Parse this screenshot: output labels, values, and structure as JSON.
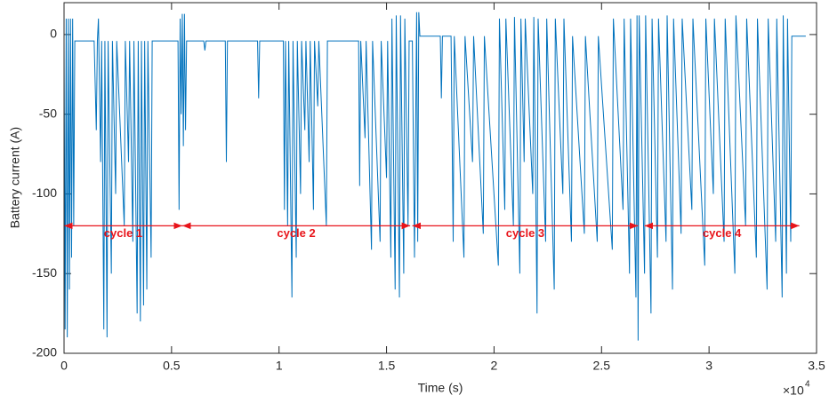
{
  "chart_data": {
    "type": "line",
    "x_label": "Time (s)",
    "y_label": "Battery current (A)",
    "x_multiplier": "×10",
    "x_multiplier_exponent": "4",
    "color": "#0072bd",
    "xlim": [
      0,
      35000
    ],
    "xticks": [
      0,
      {
        "value": 5000,
        "label": "0.5"
      },
      {
        "value": 10000,
        "label": "1"
      },
      {
        "value": 15000,
        "label": "1.5"
      },
      {
        "value": 20000,
        "label": "2"
      },
      {
        "value": 25000,
        "label": "2.5"
      },
      {
        "value": 30000,
        "label": "3"
      },
      {
        "value": 35000,
        "label": "3.5"
      }
    ],
    "ylim": [
      -200,
      20
    ],
    "yticks": [
      -200,
      -150,
      -100,
      -50,
      0
    ],
    "annotations": [
      {
        "text": "cycle 1",
        "x": [
          0,
          5500
        ],
        "y": -120
      },
      {
        "text": "cycle 2",
        "x": [
          5500,
          16100
        ],
        "y": -120
      },
      {
        "text": "cycle 3",
        "x": [
          16200,
          26700
        ],
        "y": -120
      },
      {
        "text": "cycle 4",
        "x": [
          27000,
          34200
        ],
        "y": -120
      }
    ],
    "x": [
      0,
      50,
      100,
      150,
      200,
      250,
      300,
      350,
      400,
      450,
      500,
      1400,
      1500,
      1550,
      1600,
      1700,
      1750,
      1850,
      1900,
      2000,
      2050,
      2200,
      2250,
      2400,
      2450,
      2800,
      2850,
      3000,
      3050,
      3200,
      3250,
      3400,
      3450,
      3550,
      3600,
      3700,
      3750,
      3850,
      3900,
      4050,
      4100,
      5300,
      5350,
      5400,
      5450,
      5500,
      5550,
      5600,
      5650,
      5700,
      6500,
      6550,
      6600,
      7500,
      7550,
      7600,
      9000,
      9050,
      9100,
      10200,
      10250,
      10300,
      10400,
      10450,
      10600,
      10650,
      10800,
      10850,
      11000,
      11050,
      11200,
      11250,
      11400,
      11450,
      11600,
      11650,
      11800,
      11850,
      12200,
      12250,
      13700,
      13750,
      13800,
      14000,
      14050,
      14300,
      14350,
      14700,
      14750,
      15000,
      15050,
      15200,
      15250,
      15400,
      15450,
      15600,
      15650,
      15800,
      15850,
      16000,
      16050,
      16200,
      16300,
      16400,
      16450,
      16500,
      16550,
      17500,
      17550,
      17600,
      18000,
      18100,
      18150,
      18600,
      18650,
      19000,
      19050,
      19500,
      19550,
      20200,
      20250,
      20500,
      20550,
      20900,
      20950,
      21200,
      21250,
      21400,
      21450,
      21800,
      21850,
      22000,
      22050,
      22400,
      22450,
      22800,
      22850,
      23200,
      23250,
      23600,
      23650,
      24200,
      24250,
      24800,
      24850,
      25500,
      25550,
      26000,
      26050,
      26300,
      26350,
      26600,
      26650,
      26700,
      26750,
      27000,
      27050,
      27300,
      27350,
      27600,
      27650,
      28000,
      28050,
      28300,
      28350,
      28700,
      28750,
      29200,
      29250,
      29800,
      29850,
      30200,
      30250,
      30700,
      30750,
      31200,
      31250,
      31700,
      31750,
      32200,
      32250,
      32700,
      32750,
      33100,
      33150,
      33400,
      33450,
      33600,
      33650,
      33800,
      33850,
      34500
    ],
    "values": [
      -5,
      -185,
      10,
      -190,
      10,
      -160,
      10,
      -140,
      10,
      -120,
      -4,
      -4,
      -60,
      -4,
      10,
      -80,
      -4,
      -185,
      -4,
      -190,
      -4,
      -150,
      -4,
      -100,
      -4,
      -120,
      -4,
      -80,
      -4,
      -130,
      -4,
      -175,
      -4,
      -180,
      -4,
      -170,
      -4,
      -160,
      -4,
      -140,
      -4,
      -4,
      -110,
      10,
      -50,
      13,
      -70,
      13,
      -60,
      -4,
      -4,
      -10,
      -4,
      -4,
      -80,
      -4,
      -4,
      -40,
      -4,
      -4,
      -110,
      -4,
      -120,
      -4,
      -165,
      -4,
      -140,
      -4,
      -100,
      -4,
      -60,
      -4,
      -80,
      -4,
      -110,
      -4,
      -45,
      -4,
      -120,
      -4,
      -4,
      -95,
      -4,
      -65,
      -4,
      -135,
      -4,
      -130,
      -4,
      -90,
      -4,
      -140,
      10,
      -160,
      12,
      -165,
      12,
      -150,
      10,
      -120,
      -4,
      -4,
      -140,
      14,
      -130,
      14,
      -1,
      -1,
      -40,
      -1,
      -1,
      -130,
      -1,
      -140,
      -1,
      -80,
      -1,
      -125,
      -1,
      -145,
      10,
      -110,
      10,
      -120,
      11,
      -150,
      10,
      -80,
      10,
      -100,
      11,
      -175,
      10,
      -130,
      10,
      -160,
      10,
      -100,
      10,
      -130,
      -1,
      -125,
      -1,
      -130,
      -1,
      -135,
      10,
      -110,
      10,
      -150,
      10,
      -165,
      12,
      -192,
      12,
      -150,
      12,
      -175,
      10,
      -140,
      10,
      -130,
      12,
      -160,
      10,
      -125,
      10,
      -110,
      10,
      -145,
      10,
      -100,
      10,
      -130,
      10,
      -150,
      12,
      -120,
      10,
      -140,
      10,
      -160,
      10,
      -130,
      10,
      -165,
      12,
      -150,
      10,
      -130,
      -1,
      -1
    ]
  }
}
